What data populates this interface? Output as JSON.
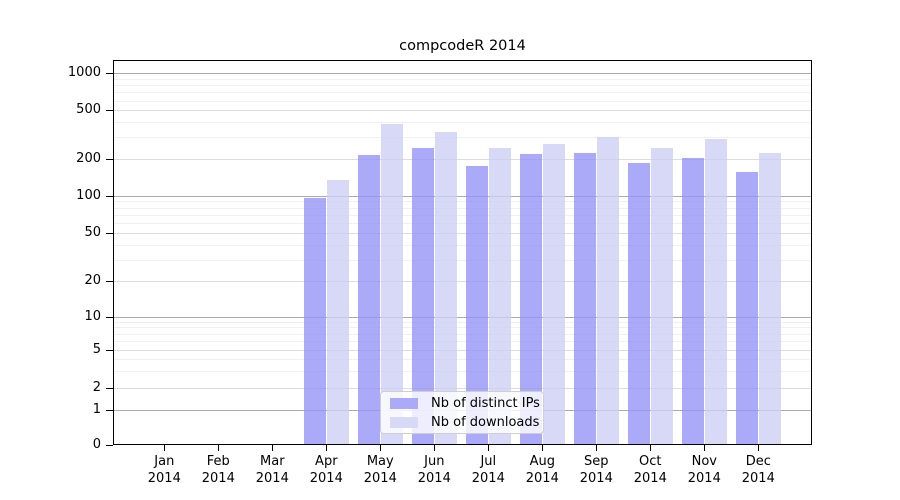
{
  "figure": {
    "title": "compcodeR 2014"
  },
  "legend": {
    "items": [
      {
        "label": "Nb of distinct IPs"
      },
      {
        "label": "Nb of downloads"
      }
    ]
  },
  "chart_data": {
    "type": "bar",
    "title": "compcodeR 2014",
    "categories": [
      "Jan",
      "Feb",
      "Mar",
      "Apr",
      "May",
      "Jun",
      "Jul",
      "Aug",
      "Sep",
      "Oct",
      "Nov",
      "Dec"
    ],
    "x_tick_year": "2014",
    "series": [
      {
        "name": "Nb of distinct IPs",
        "color": "#aaaaf8",
        "fill": "rgba(146,146,246,0.78)",
        "values": [
          0,
          0,
          0,
          95,
          217,
          245,
          174,
          218,
          225,
          187,
          205,
          158
        ]
      },
      {
        "name": "Nb of downloads",
        "color": "#d8d8f7",
        "fill": "rgba(205,205,245,0.78)",
        "values": [
          0,
          0,
          0,
          135,
          385,
          330,
          245,
          265,
          302,
          248,
          290,
          226
        ]
      }
    ],
    "y_ticks": [
      0,
      1,
      2,
      5,
      10,
      20,
      50,
      100,
      200,
      500,
      1000
    ],
    "y_scale": "log-like with zero baseline",
    "ylim": [
      0,
      1280
    ],
    "grid": true,
    "grid_emphasis_ticks": [
      1,
      10,
      100,
      1000
    ],
    "legend_position": "inside bottom center",
    "colors": {
      "bar_dark": "#aaaaf8",
      "bar_light": "#d8d8f7",
      "grid_minor": "#f0f0f0",
      "grid_major": "#dcdcdc",
      "grid_major_dark": "#ababab",
      "axis": "#000000",
      "background": "#ffffff"
    }
  }
}
